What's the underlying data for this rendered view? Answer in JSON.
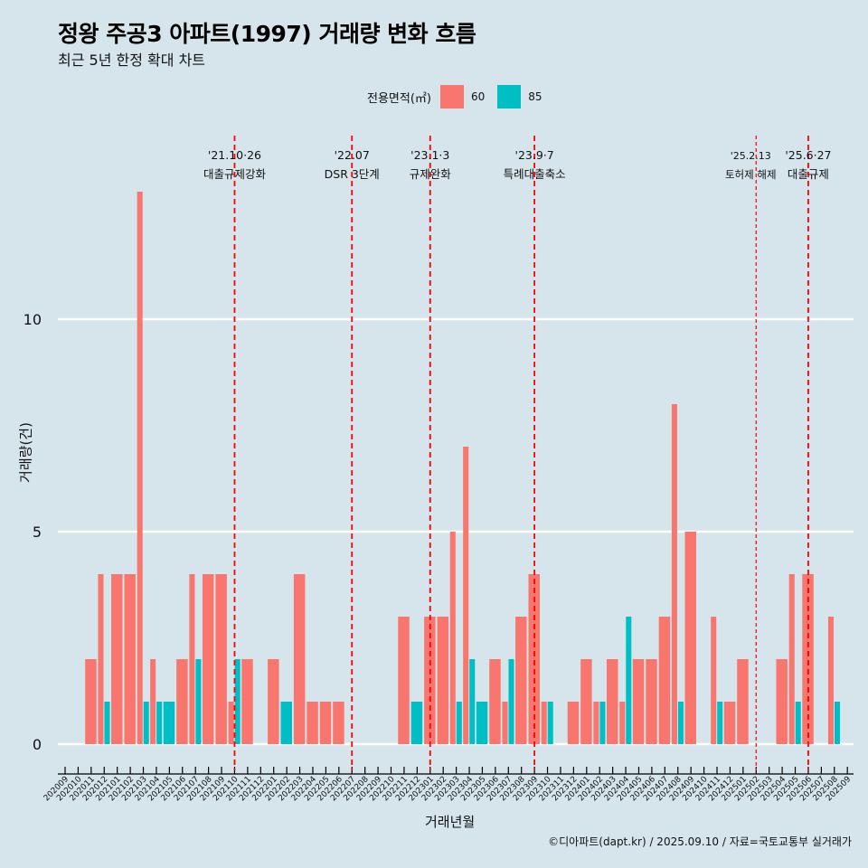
{
  "header": {
    "title": "정왕 주공3 아파트(1997) 거래량 변화 흐름",
    "subtitle": "최근 5년 한정 확대 차트"
  },
  "legend": {
    "title": "전용면적(㎡)",
    "items": [
      {
        "label": "60",
        "color": "#f8766d"
      },
      {
        "label": "85",
        "color": "#00bfc4"
      }
    ]
  },
  "caption": "©디아파트(dapt.kr) / 2025.09.10 / 자료=국토교통부 실거래가",
  "chart_data": {
    "type": "bar",
    "title": "정왕 주공3 아파트(1997) 거래량 변화 흐름",
    "subtitle": "최근 5년 한정 확대 차트",
    "xlabel": "거래년월",
    "ylabel": "거래량(건)",
    "ylim": [
      0,
      13
    ],
    "yticks": [
      0,
      5,
      10
    ],
    "grid": "horizontal major",
    "legend_position": "top",
    "position": "dodge",
    "categories": [
      "202009",
      "202010",
      "202011",
      "202012",
      "202101",
      "202102",
      "202103",
      "202104",
      "202105",
      "202106",
      "202107",
      "202108",
      "202109",
      "202110",
      "202111",
      "202112",
      "202201",
      "202202",
      "202203",
      "202204",
      "202205",
      "202206",
      "202207",
      "202208",
      "202209",
      "202210",
      "202211",
      "202212",
      "202301",
      "202302",
      "202303",
      "202304",
      "202305",
      "202306",
      "202307",
      "202308",
      "202309",
      "202310",
      "202311",
      "202312",
      "202401",
      "202402",
      "202403",
      "202404",
      "202405",
      "202406",
      "202407",
      "202408",
      "202409",
      "202410",
      "202411",
      "202412",
      "202501",
      "202502",
      "202503",
      "202504",
      "202505",
      "202506",
      "202507",
      "202508",
      "202509"
    ],
    "series": [
      {
        "name": "60",
        "color": "#f8766d",
        "values": [
          0,
          0,
          2,
          4,
          4,
          4,
          13,
          2,
          0,
          2,
          4,
          4,
          4,
          1,
          2,
          0,
          2,
          0,
          4,
          1,
          1,
          1,
          0,
          0,
          0,
          0,
          3,
          0,
          3,
          3,
          5,
          7,
          0,
          2,
          1,
          3,
          4,
          1,
          0,
          1,
          2,
          1,
          2,
          1,
          2,
          2,
          3,
          8,
          5,
          0,
          3,
          1,
          2,
          0,
          0,
          2,
          4,
          4,
          0,
          3,
          0
        ]
      },
      {
        "name": "85",
        "color": "#00bfc4",
        "values": [
          0,
          0,
          0,
          1,
          0,
          0,
          1,
          1,
          1,
          0,
          2,
          0,
          0,
          2,
          0,
          0,
          0,
          1,
          0,
          0,
          0,
          0,
          0,
          0,
          0,
          0,
          0,
          1,
          0,
          0,
          1,
          2,
          1,
          0,
          2,
          0,
          0,
          1,
          0,
          0,
          0,
          1,
          0,
          3,
          0,
          0,
          0,
          1,
          0,
          0,
          1,
          0,
          0,
          0,
          0,
          0,
          1,
          0,
          0,
          1,
          0
        ]
      }
    ],
    "annotations": [
      {
        "month": "202110",
        "date": "'21.10·26",
        "label": "대출규제강화",
        "style": "dashed"
      },
      {
        "month": "202207",
        "date": "'22.07",
        "label": "DSR 3단계",
        "style": "dashed"
      },
      {
        "month": "202301",
        "date": "'23.1·3",
        "label": "규제완화",
        "style": "dashed"
      },
      {
        "month": "202309",
        "date": "'23.9·7",
        "label": "특례대출축소",
        "style": "dashed"
      },
      {
        "month": "202502",
        "date": "'25.2.13",
        "label": "토허제 해제",
        "style": "dashed-thin"
      },
      {
        "month": "202506",
        "date": "'25.6·27",
        "label": "대출규제",
        "style": "dashed"
      }
    ],
    "line_color": "#ff0000"
  }
}
